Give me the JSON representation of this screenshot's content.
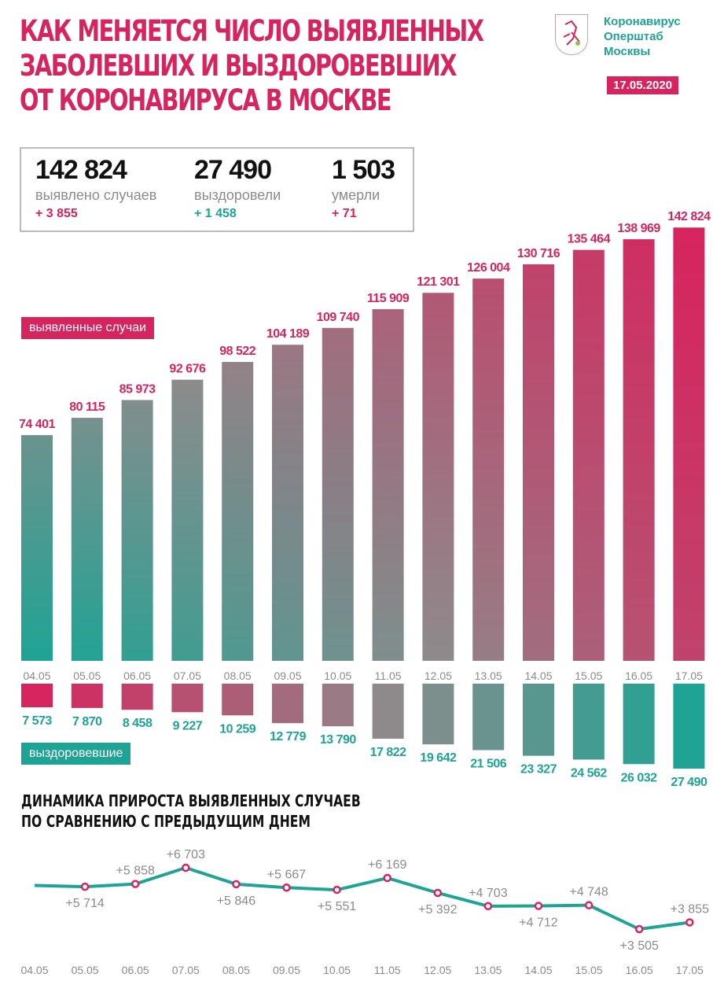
{
  "header": {
    "title_lines": [
      "КАК МЕНЯЕТСЯ ЧИСЛО ВЫЯВЛЕННЫХ",
      "ЗАБОЛЕВШИХ И ВЫЗДОРОВЕВШИХ",
      "ОТ КОРОНАВИРУСА В МОСКВЕ"
    ],
    "org_lines": [
      "Коронавирус",
      "Оперштаб",
      "Москвы"
    ],
    "date": "17.05.2020",
    "logo_icon": "moscow-coat-of-arms-icon"
  },
  "summary": [
    {
      "value": "142 824",
      "label": "выявлено случаев",
      "delta": "+ 3 855",
      "delta_color": "#d6245e"
    },
    {
      "value": "27 490",
      "label": "выздоровели",
      "delta": "+ 1 458",
      "delta_color": "#1fa394"
    },
    {
      "value": "1 503",
      "label": "умерли",
      "delta": "+ 71",
      "delta_color": "#d6245e"
    }
  ],
  "colors": {
    "magenta": "#d6245e",
    "teal": "#1fa394",
    "grey": "#8b8b8b"
  },
  "chart_data": [
    {
      "type": "bar",
      "title": "выявленные случаи",
      "categories": [
        "04.05",
        "05.05",
        "06.05",
        "07.05",
        "08.05",
        "09.05",
        "10.05",
        "11.05",
        "12.05",
        "13.05",
        "14.05",
        "15.05",
        "16.05",
        "17.05"
      ],
      "values": [
        74401,
        80115,
        85973,
        92676,
        98522,
        104189,
        109740,
        115909,
        121301,
        126004,
        130716,
        135464,
        138969,
        142824
      ],
      "labels": [
        "74 401",
        "80 115",
        "85 973",
        "92 676",
        "98 522",
        "104 189",
        "109 740",
        "115 909",
        "121 301",
        "126 004",
        "130 716",
        "135 464",
        "138 969",
        "142 824"
      ],
      "legend": "выявленные случаи"
    },
    {
      "type": "bar",
      "title": "выздоровевшие",
      "categories": [
        "04.05",
        "05.05",
        "06.05",
        "07.05",
        "08.05",
        "09.05",
        "10.05",
        "11.05",
        "12.05",
        "13.05",
        "14.05",
        "15.05",
        "16.05",
        "17.05"
      ],
      "values": [
        7573,
        7870,
        8458,
        9227,
        10259,
        12779,
        13790,
        17822,
        19642,
        21506,
        23327,
        24562,
        26032,
        27490
      ],
      "labels": [
        "7 573",
        "7 870",
        "8 458",
        "9 227",
        "10 259",
        "12 779",
        "13 790",
        "17 822",
        "19 642",
        "21 506",
        "23 327",
        "24 562",
        "26 032",
        "27 490"
      ],
      "legend": "выздоровевшие"
    },
    {
      "type": "line",
      "title_lines": [
        "ДИНАМИКА ПРИРОСТА ВЫЯВЛЕННЫХ СЛУЧАЕВ",
        "ПО СРАВНЕНИЮ С ПРЕДЫДУЩИМ ДНЕМ"
      ],
      "categories": [
        "04.05",
        "05.05",
        "06.05",
        "07.05",
        "08.05",
        "09.05",
        "10.05",
        "11.05",
        "12.05",
        "13.05",
        "14.05",
        "15.05",
        "16.05",
        "17.05"
      ],
      "values": [
        null,
        5714,
        5858,
        6703,
        5846,
        5667,
        5551,
        6169,
        5392,
        4703,
        4712,
        4748,
        3505,
        3855
      ],
      "labels": [
        "",
        "+5 714",
        "+5 858",
        "+6 703",
        "+5 846",
        "+5 667",
        "+5 551",
        "+6 169",
        "+5 392",
        "+4 703",
        "+4 712",
        "+4 748",
        "+3 505",
        "+3 855"
      ],
      "start_value_estimate": 5780
    }
  ]
}
